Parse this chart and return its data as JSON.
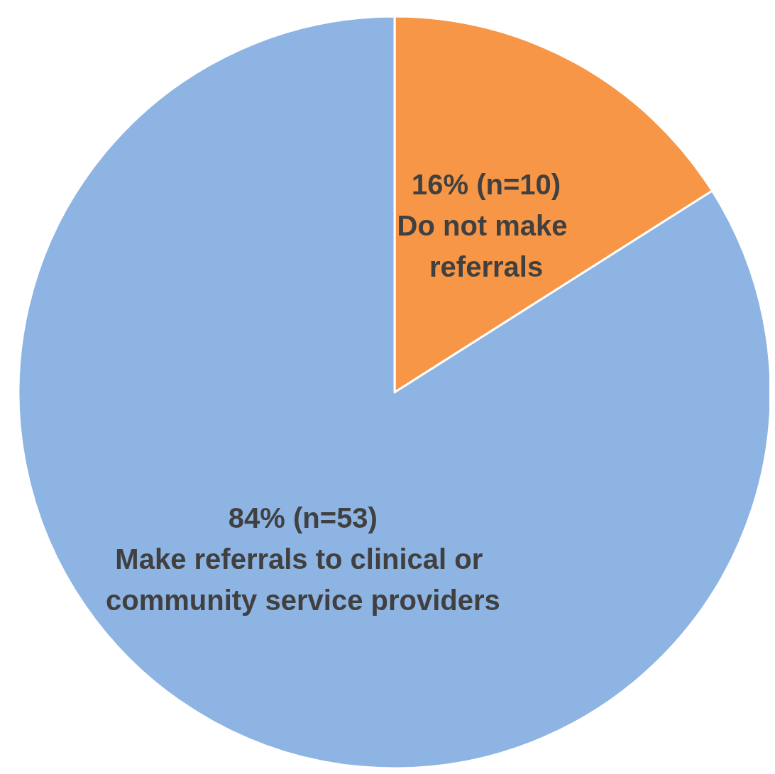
{
  "chart_data": {
    "type": "pie",
    "categories": [
      "Do not make referrals",
      "Make referrals to clinical or community service providers"
    ],
    "values": [
      16,
      84
    ],
    "value_labels": [
      "16% (n=10)",
      "84% (n=53)"
    ],
    "colors": [
      "#f79646",
      "#8eb4e3"
    ],
    "legend": false
  }
}
